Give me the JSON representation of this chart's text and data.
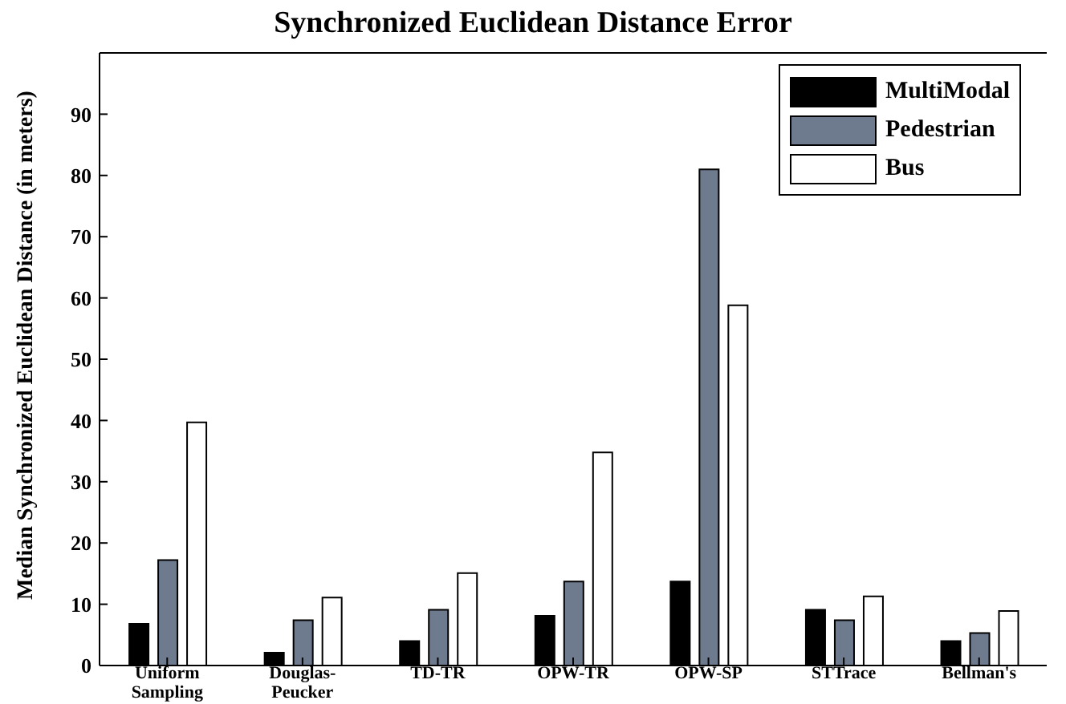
{
  "chart_data": {
    "type": "bar",
    "title": "Synchronized Euclidean Distance Error",
    "ylabel": "Median Synchronized Euclidean Distance (in meters)",
    "categories": [
      "Uniform Sampling",
      "Douglas-Peucker",
      "TD-TR",
      "OPW-TR",
      "OPW-SP",
      "STTrace",
      "Bellman's"
    ],
    "series": [
      {
        "name": "MultiModal",
        "color": "#000000",
        "values": [
          6.8,
          2.1,
          4.0,
          8.1,
          13.7,
          9.1,
          4.0
        ]
      },
      {
        "name": "Pedestrian",
        "color": "#6e7b8f",
        "values": [
          17.2,
          7.4,
          9.1,
          13.7,
          81,
          7.4,
          5.3
        ]
      },
      {
        "name": "Bus",
        "color": "#ffffff",
        "values": [
          39.7,
          11.1,
          15.1,
          34.8,
          58.8,
          11.3,
          8.9
        ]
      }
    ],
    "ylim": [
      0,
      100
    ],
    "yticks": [
      0,
      10,
      20,
      30,
      40,
      50,
      60,
      70,
      80,
      90
    ],
    "grid": false,
    "legend": "top right"
  }
}
